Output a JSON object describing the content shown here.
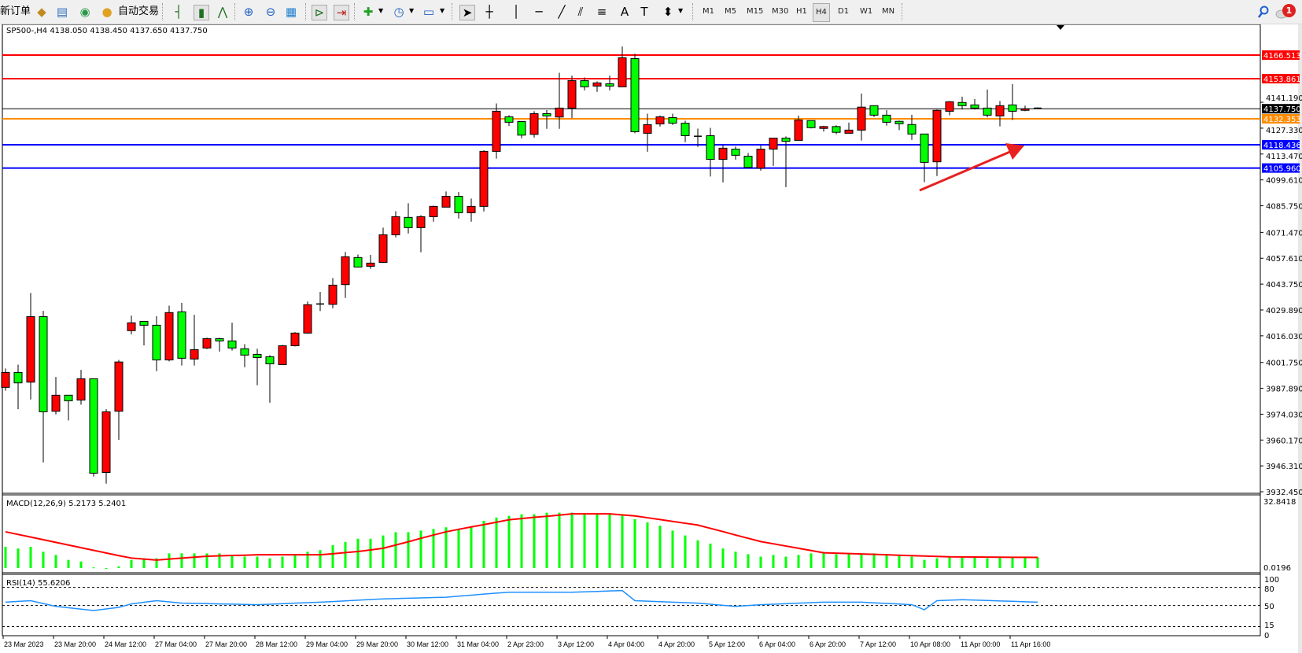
{
  "toolbar": {
    "new_order_label": "新订单",
    "auto_trading_label": "自动交易",
    "timeframes": [
      "M1",
      "M5",
      "M15",
      "M30",
      "H1",
      "H4",
      "D1",
      "W1",
      "MN"
    ],
    "active_timeframe": "H4",
    "notification_count": "1",
    "icons": [
      "new-order-icon",
      "gold-icon",
      "market-watch-icon",
      "signal-icon",
      "auto-trading-icon",
      "bar-chart-icon",
      "candlestick-icon",
      "line-chart-icon",
      "zoom-in-icon",
      "zoom-out-icon",
      "tile-windows-icon",
      "auto-scroll-icon",
      "chart-shift-icon",
      "indicators-icon",
      "periods-icon",
      "templates-icon",
      "cursor-icon",
      "crosshair-icon",
      "vertical-line-icon",
      "horizontal-line-icon",
      "trendline-icon",
      "equidistant-channel-icon",
      "fibonacci-icon",
      "text-icon",
      "text-label-icon",
      "arrows-icon",
      "search-icon",
      "notifications-icon"
    ]
  },
  "chart_header": "SP500-,H4  4138.050 4138.450 4137.650 4137.750",
  "colors": {
    "bull": "#ff0000",
    "bear": "#00ff00",
    "macd_hist": "#00ff00",
    "macd_signal": "#ff0000",
    "rsi": "#1e90ff",
    "bid_line": "#000000"
  },
  "chart_data": [
    {
      "type": "candlestick",
      "symbol": "SP500-",
      "timeframe": "H4",
      "ohlc_order": [
        "open",
        "high",
        "low",
        "close"
      ],
      "candles": [
        [
          3988.4,
          3998.5,
          3986.6,
          3996.4
        ],
        [
          3996.4,
          4000.6,
          3976.7,
          3990.8
        ],
        [
          3991.2,
          4039.0,
          3981.9,
          4026.3
        ],
        [
          4026.3,
          4029.4,
          3948.2,
          3975.3
        ],
        [
          3975.6,
          3994.0,
          3973.9,
          3984.2
        ],
        [
          3984.2,
          3984.2,
          3970.7,
          3981.2
        ],
        [
          3981.6,
          3997.8,
          3979.1,
          3993.0
        ],
        [
          3993.0,
          3993.0,
          3940.6,
          3942.4
        ],
        [
          3942.8,
          3976.7,
          3936.8,
          3975.3
        ],
        [
          3975.6,
          4003.1,
          3960.3,
          4002.0
        ],
        [
          4018.8,
          4026.9,
          4016.8,
          4023.0
        ],
        [
          4023.8,
          4023.8,
          4010.9,
          4021.7
        ],
        [
          4021.7,
          4026.5,
          3997.1,
          4003.1
        ],
        [
          4003.1,
          4032.2,
          4002.3,
          4028.5
        ],
        [
          4028.9,
          4033.7,
          4000.1,
          4004.0
        ],
        [
          4003.6,
          4027.3,
          4000.1,
          4008.6
        ],
        [
          4009.5,
          4015.0,
          4008.9,
          4014.5
        ],
        [
          4014.5,
          4015.0,
          4007.6,
          4013.3
        ],
        [
          4013.3,
          4023.1,
          4008.1,
          4009.5
        ],
        [
          4009.1,
          4011.6,
          3999.2,
          4005.7
        ],
        [
          4006.1,
          4009.1,
          3989.5,
          4004.4
        ],
        [
          4004.8,
          4005.7,
          3980.2,
          4001.0
        ],
        [
          4000.6,
          4011.2,
          4000.6,
          4010.7
        ],
        [
          4010.7,
          4018.0,
          4010.3,
          4017.5
        ],
        [
          4017.5,
          4034.4,
          4017.1,
          4032.7
        ],
        [
          4033.1,
          4039.6,
          4029.3,
          4033.1
        ],
        [
          4032.9,
          4047.0,
          4030.8,
          4043.2
        ],
        [
          4043.5,
          4061.0,
          4036.3,
          4058.4
        ],
        [
          4058.0,
          4059.6,
          4052.9,
          4052.9
        ],
        [
          4053.3,
          4059.4,
          4051.9,
          4055.0
        ],
        [
          4055.4,
          4074.0,
          4055.0,
          4070.2
        ],
        [
          4070.2,
          4082.8,
          4068.8,
          4079.9
        ],
        [
          4079.5,
          4087.1,
          4070.9,
          4074.0
        ],
        [
          4074.0,
          4080.7,
          4060.8,
          4079.9
        ],
        [
          4079.9,
          4085.8,
          4077.2,
          4085.4
        ],
        [
          4085.0,
          4093.4,
          4085.0,
          4090.8
        ],
        [
          4090.8,
          4093.1,
          4078.9,
          4082.0
        ],
        [
          4082.0,
          4089.6,
          4077.2,
          4085.4
        ],
        [
          4085.4,
          4115.5,
          4082.7,
          4114.9
        ],
        [
          4114.9,
          4140.6,
          4111.0,
          4136.4
        ],
        [
          4133.4,
          4134.3,
          4128.5,
          4130.5
        ],
        [
          4130.9,
          4130.9,
          4121.9,
          4123.6
        ],
        [
          4124.0,
          4136.4,
          4122.3,
          4135.1
        ],
        [
          4135.1,
          4137.0,
          4127.0,
          4133.9
        ],
        [
          4133.3,
          4157.0,
          4127.0,
          4138.1
        ],
        [
          4138.1,
          4155.5,
          4132.7,
          4152.8
        ],
        [
          4152.8,
          4154.5,
          4147.6,
          4149.5
        ],
        [
          4149.9,
          4152.4,
          4146.8,
          4151.6
        ],
        [
          4151.1,
          4155.5,
          4147.6,
          4149.9
        ],
        [
          4149.5,
          4171.1,
          4149.5,
          4165.1
        ],
        [
          4164.6,
          4167.2,
          4124.6,
          4125.4
        ],
        [
          4124.6,
          4135.1,
          4114.7,
          4129.2
        ],
        [
          4129.6,
          4134.1,
          4128.2,
          4133.4
        ],
        [
          4133.0,
          4135.1,
          4129.1,
          4130.0
        ],
        [
          4130.0,
          4131.3,
          4119.8,
          4123.3
        ],
        [
          4123.0,
          4127.1,
          4117.3,
          4123.0
        ],
        [
          4123.3,
          4127.5,
          4101.4,
          4110.6
        ],
        [
          4110.6,
          4118.0,
          4098.3,
          4116.6
        ],
        [
          4116.1,
          4117.5,
          4110.5,
          4112.8
        ],
        [
          4112.3,
          4114.0,
          4106.3,
          4106.3
        ],
        [
          4105.9,
          4118.0,
          4104.6,
          4116.1
        ],
        [
          4116.1,
          4122.0,
          4107.1,
          4122.0
        ],
        [
          4122.0,
          4122.9,
          4095.7,
          4120.3
        ],
        [
          4120.8,
          4134.1,
          4120.8,
          4131.7
        ],
        [
          4131.4,
          4131.4,
          4127.2,
          4127.6
        ],
        [
          4127.2,
          4128.6,
          4125.5,
          4128.2
        ],
        [
          4128.2,
          4128.9,
          4124.1,
          4125.1
        ],
        [
          4124.6,
          4130.3,
          4124.6,
          4126.3
        ],
        [
          4126.3,
          4145.9,
          4120.7,
          4138.6
        ],
        [
          4139.4,
          4139.4,
          4133.3,
          4134.3
        ],
        [
          4134.3,
          4137.0,
          4128.7,
          4130.5
        ],
        [
          4131.0,
          4131.4,
          4126.3,
          4129.7
        ],
        [
          4129.3,
          4134.5,
          4121.1,
          4124.2
        ],
        [
          4124.2,
          4124.2,
          4098.4,
          4109.0
        ],
        [
          4109.3,
          4137.3,
          4101.7,
          4136.9
        ],
        [
          4136.4,
          4141.9,
          4134.2,
          4141.5
        ],
        [
          4141.1,
          4144.2,
          4137.3,
          4139.4
        ],
        [
          4139.8,
          4142.9,
          4137.3,
          4138.1
        ],
        [
          4138.1,
          4148.0,
          4133.1,
          4134.3
        ],
        [
          4133.9,
          4141.9,
          4128.3,
          4139.4
        ],
        [
          4139.8,
          4150.9,
          4131.7,
          4136.4
        ],
        [
          4136.9,
          4139.4,
          4136.4,
          4137.7
        ],
        [
          4138.05,
          4138.45,
          4137.65,
          4137.75
        ]
      ],
      "x_tick_labels": [
        "23 Mar 2023",
        "23 Mar 20:00",
        "24 Mar 12:00",
        "27 Mar 04:00",
        "27 Mar 20:00",
        "28 Mar 12:00",
        "29 Mar 04:00",
        "29 Mar 20:00",
        "30 Mar 12:00",
        "31 Mar 04:00",
        "2 Apr 23:00",
        "3 Apr 12:00",
        "4 Apr 04:00",
        "4 Apr 20:00",
        "5 Apr 12:00",
        "6 Apr 04:00",
        "6 Apr 20:00",
        "7 Apr 12:00",
        "10 Apr 08:00",
        "11 Apr 00:00",
        "11 Apr 16:00"
      ],
      "y_tick_labels": [
        "4141.190",
        "4127.330",
        "4113.470",
        "4099.610",
        "4085.750",
        "4071.470",
        "4057.610",
        "4043.750",
        "4029.890",
        "4016.030",
        "4001.750",
        "3987.890",
        "3974.030",
        "3960.170",
        "3946.310",
        "3932.450"
      ],
      "ylim": [
        3932.45,
        4168.9
      ],
      "horizontal_lines": [
        {
          "price": 4166.513,
          "label": "4166.513",
          "color": "#ff0000"
        },
        {
          "price": 4153.861,
          "label": "4153.861",
          "color": "#ff0000"
        },
        {
          "price": 4137.75,
          "label": "4137.750",
          "color": "#000000"
        },
        {
          "price": 4132.353,
          "label": "4132.353",
          "color": "#ff8c00"
        },
        {
          "price": 4118.436,
          "label": "4118.436",
          "color": "#0000ff"
        },
        {
          "price": 4105.96,
          "label": "4105.960",
          "color": "#0000ff"
        }
      ],
      "annotations": [
        {
          "type": "arrow",
          "color": "#e82020",
          "direction": "up-right"
        }
      ]
    },
    {
      "type": "bar",
      "title": "MACD(12,26,9) 5.2173 5.2401",
      "y_tick_labels": [
        "32.8418",
        "0.0196"
      ],
      "ylim": [
        0,
        32.8418
      ],
      "histogram": [
        10.4,
        9.6,
        10.4,
        8,
        6.4,
        4,
        3.2,
        0.3,
        -0.4,
        0.8,
        4,
        4.8,
        4.8,
        7.2,
        7.2,
        7.2,
        7.2,
        7.2,
        6.4,
        5.6,
        5.6,
        4.8,
        5.6,
        6.4,
        8,
        8.8,
        11.2,
        12.8,
        14.4,
        14.4,
        16,
        17.6,
        17.6,
        18.4,
        19.2,
        20,
        19.2,
        20,
        23.2,
        24.8,
        25.6,
        26.4,
        26.4,
        27.2,
        27.2,
        27.2,
        26.4,
        26.4,
        26.4,
        26.4,
        24,
        22.4,
        20.8,
        18.4,
        16,
        13.6,
        12,
        9.6,
        8,
        6.8,
        5.6,
        6.4,
        5.6,
        6.4,
        7.2,
        7.2,
        6.8,
        6.8,
        7.2,
        7.2,
        6.8,
        6.4,
        5.6,
        4,
        4.8,
        5.2,
        5.2,
        5.2,
        4.8,
        5.2,
        5.2,
        5.2,
        5.2173
      ],
      "signal": [
        17.8,
        16.5,
        15.2,
        13.9,
        12.6,
        11.3,
        10.0,
        8.7,
        7.4,
        6.1,
        4.9,
        4.4,
        3.9,
        4.4,
        4.9,
        5.3,
        5.8,
        6.0,
        6.2,
        6.3,
        6.5,
        6.5,
        6.5,
        6.5,
        6.5,
        6.5,
        7.0,
        7.6,
        8.1,
        8.9,
        9.7,
        11.3,
        12.9,
        14.6,
        16.2,
        17.8,
        19.0,
        20.2,
        21.3,
        22.5,
        23.7,
        24.3,
        24.9,
        25.4,
        26.0,
        26.6,
        26.6,
        26.6,
        26.6,
        26.1,
        25.6,
        24.7,
        23.8,
        22.9,
        22.0,
        21.1,
        19.5,
        17.9,
        16.2,
        14.6,
        13.0,
        11.9,
        10.8,
        9.7,
        8.6,
        7.5,
        7.3,
        7.1,
        6.9,
        6.7,
        6.5,
        6.3,
        6.1,
        5.9,
        5.7,
        5.5,
        5.45,
        5.4,
        5.35,
        5.3,
        5.28,
        5.26,
        5.2401
      ]
    },
    {
      "type": "line",
      "title": "RSI(14) 55.6206",
      "y_tick_labels": [
        "100",
        "80",
        "50",
        "15",
        "0"
      ],
      "levels": [
        80,
        50,
        15
      ],
      "ylim": [
        0,
        100
      ],
      "values": [
        55.5,
        56.8,
        58,
        53.3,
        48.6,
        46.3,
        44,
        41.7,
        44.4,
        47,
        52.7,
        55.4,
        58,
        56,
        54,
        53.6,
        53.1,
        52.7,
        52.3,
        51.8,
        51.4,
        52.2,
        53,
        53.9,
        54.7,
        55.5,
        56.6,
        57.7,
        58.8,
        59.9,
        61,
        61.5,
        62.1,
        62.6,
        63.2,
        63.7,
        65.5,
        67.2,
        69,
        70.5,
        72,
        72,
        72,
        72,
        72,
        72,
        72.7,
        73.4,
        74.1,
        74.8,
        58,
        57.2,
        56.4,
        55.6,
        54.8,
        54,
        52.2,
        50.4,
        48.6,
        50,
        51.4,
        52.2,
        53,
        53.9,
        54.7,
        55.5,
        55.5,
        55.5,
        55.5,
        54.5,
        53.5,
        52.4,
        51.4,
        43,
        58,
        58.8,
        59.6,
        59,
        58.3,
        57.6,
        57,
        56.3,
        55.6206
      ]
    }
  ]
}
